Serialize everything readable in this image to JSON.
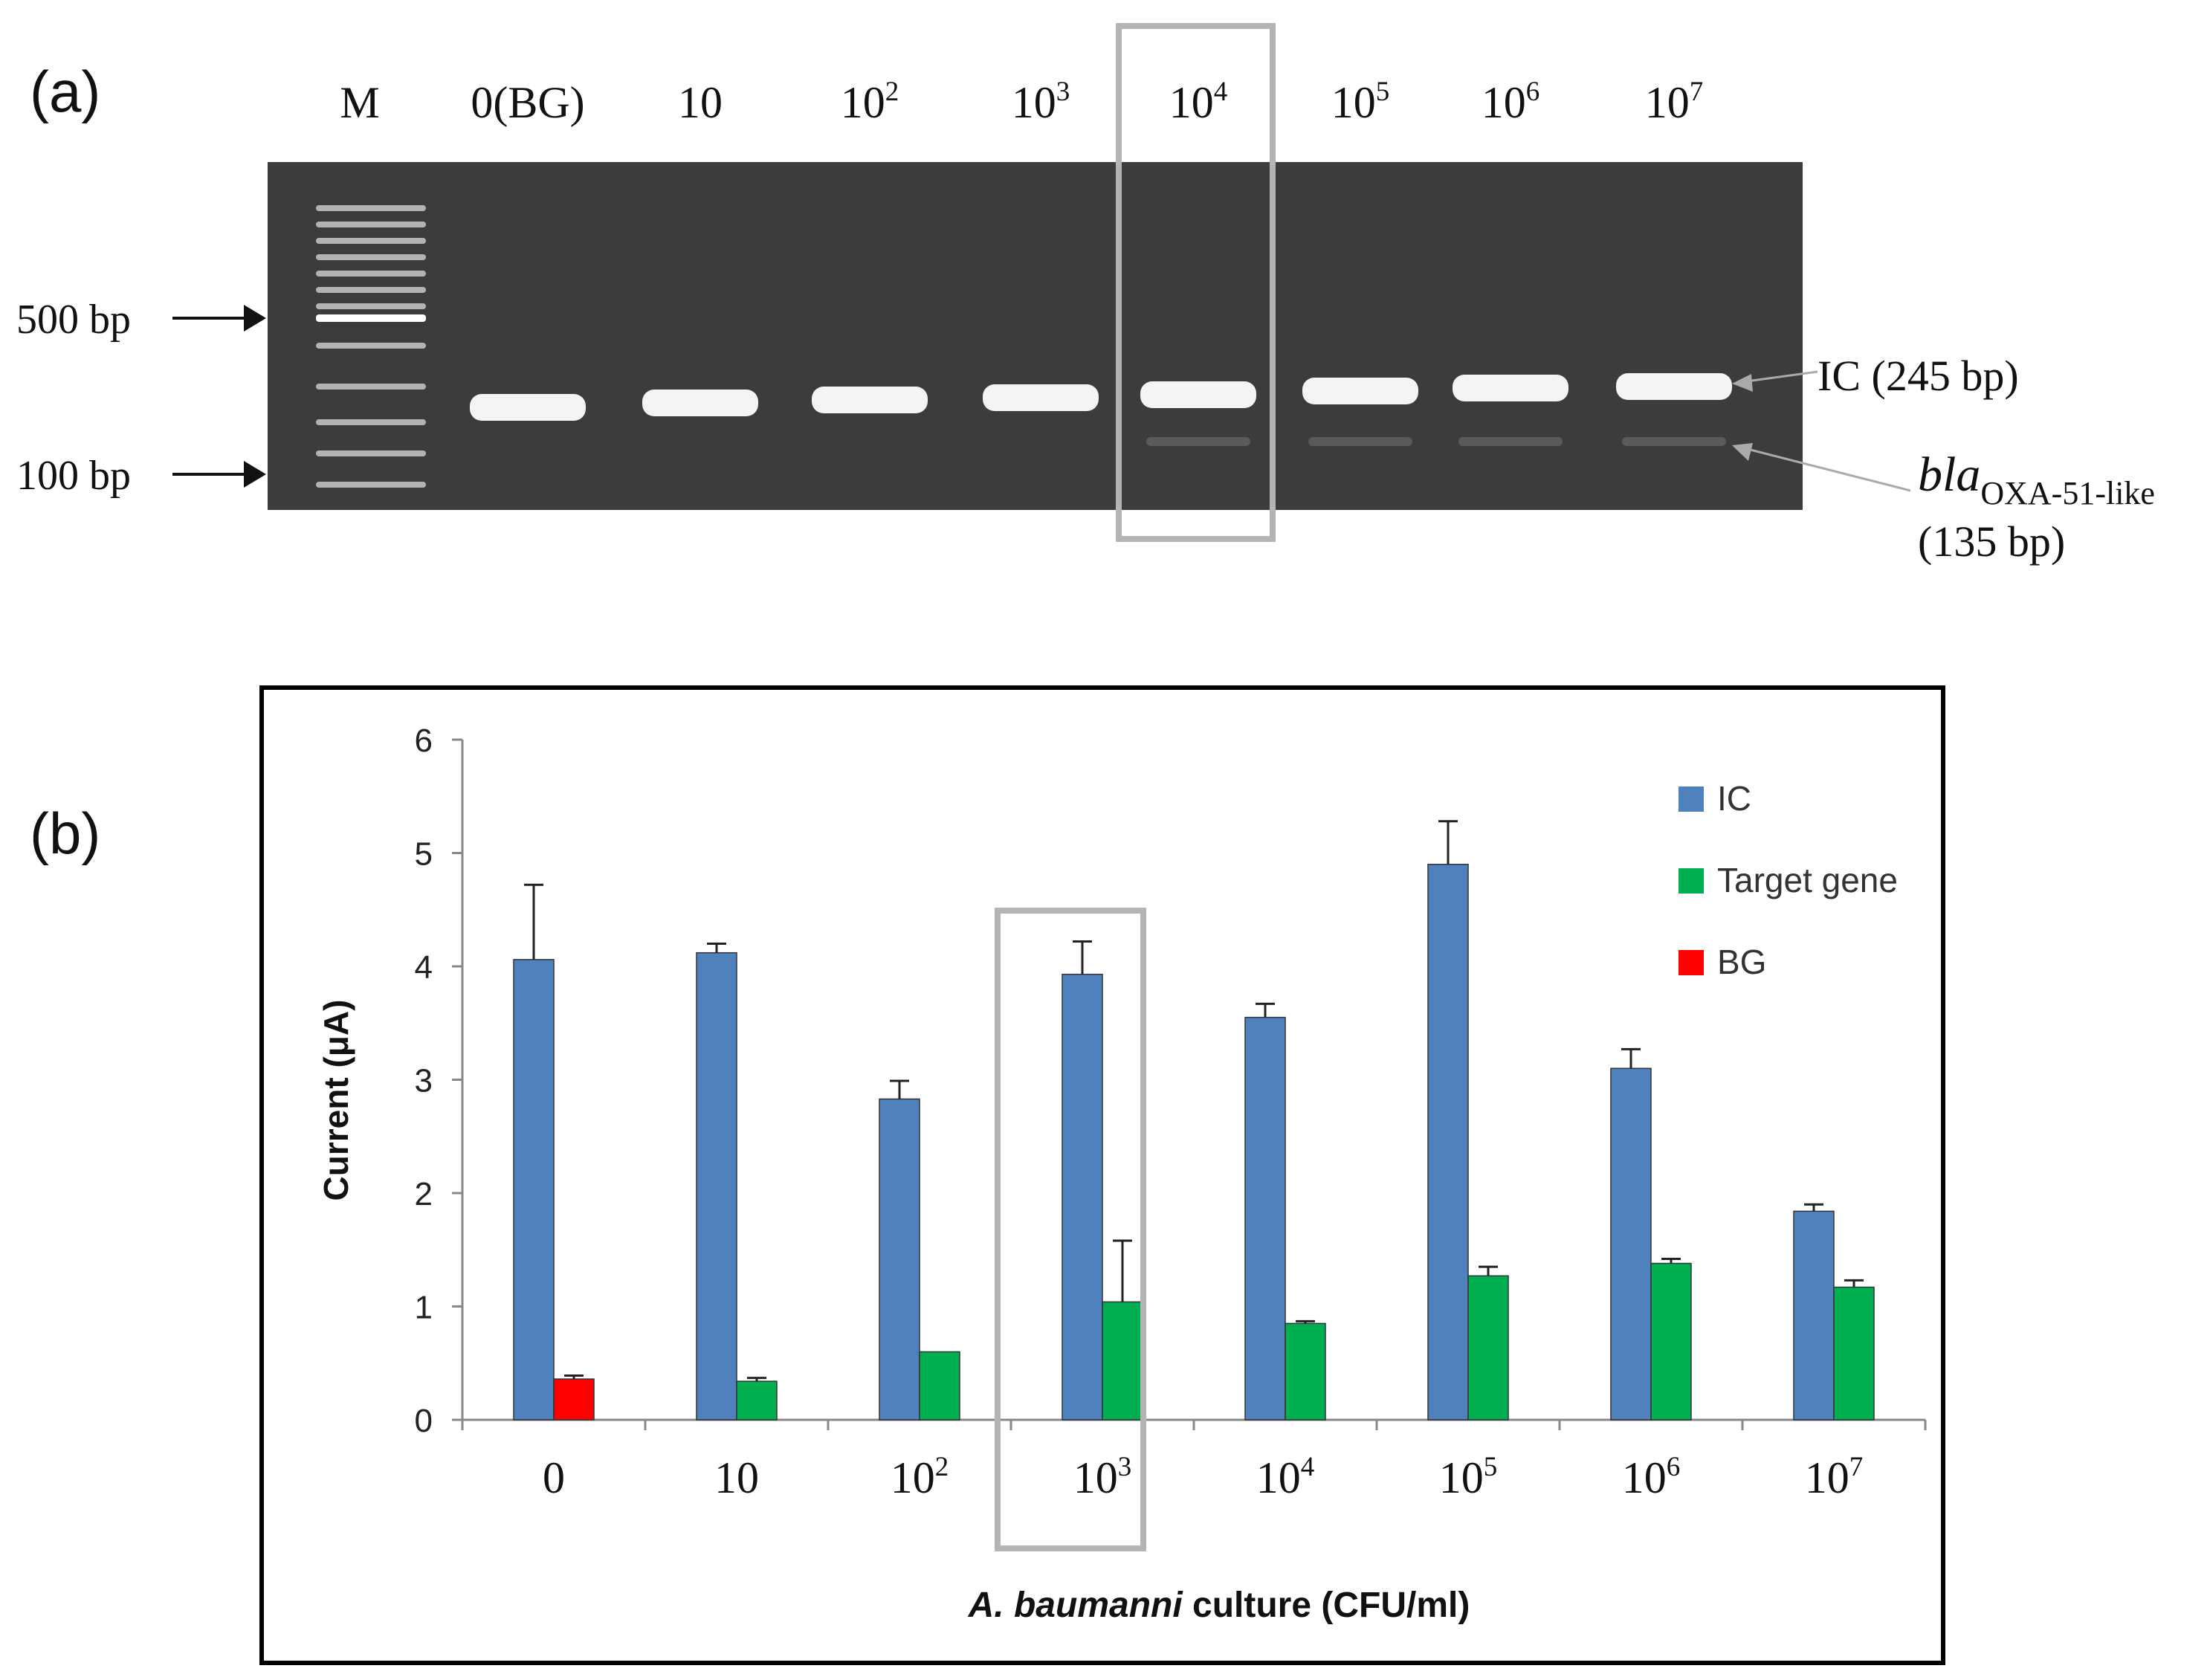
{
  "panel_a": {
    "panel_label": "(a)",
    "lane_labels": [
      {
        "base": "M",
        "sup": ""
      },
      {
        "base": "0(BG)",
        "sup": ""
      },
      {
        "base": "10",
        "sup": ""
      },
      {
        "base": "10",
        "sup": "2"
      },
      {
        "base": "10",
        "sup": "3"
      },
      {
        "base": "10",
        "sup": "4"
      },
      {
        "base": "10",
        "sup": "5"
      },
      {
        "base": "10",
        "sup": "6"
      },
      {
        "base": "10",
        "sup": "7"
      }
    ],
    "size_markers": [
      "500 bp",
      "100 bp"
    ],
    "band_labels": {
      "ic": "IC (245 bp)",
      "target_base": "bla",
      "target_sub": "OXA-51-like",
      "target_size": "(135 bp)"
    },
    "highlighted_lane": "10^4",
    "colors": {
      "gel": "#3c3c3c",
      "band": "#ffffff",
      "highlight_box": "#b4b4b4"
    }
  },
  "panel_b": {
    "panel_label": "(b)",
    "highlighted_category": "10^3",
    "chart_data": {
      "type": "bar",
      "categories": [
        {
          "base": "0",
          "sup": ""
        },
        {
          "base": "10",
          "sup": ""
        },
        {
          "base": "10",
          "sup": "2"
        },
        {
          "base": "10",
          "sup": "3"
        },
        {
          "base": "10",
          "sup": "4"
        },
        {
          "base": "10",
          "sup": "5"
        },
        {
          "base": "10",
          "sup": "6"
        },
        {
          "base": "10",
          "sup": "7"
        }
      ],
      "series": [
        {
          "name": "IC",
          "color": "#4f81bd",
          "values": [
            4.06,
            4.12,
            2.83,
            3.93,
            3.55,
            4.9,
            3.1,
            1.84
          ],
          "errors": [
            0.66,
            0.08,
            0.16,
            0.29,
            0.12,
            0.38,
            0.17,
            0.06
          ]
        },
        {
          "name": "Target gene",
          "color": "#00b050",
          "values": [
            null,
            0.34,
            0.6,
            1.04,
            0.85,
            1.27,
            1.38,
            1.17
          ],
          "errors": [
            null,
            0.03,
            0.0,
            0.54,
            0.02,
            0.08,
            0.04,
            0.06
          ]
        },
        {
          "name": "BG",
          "color": "#ff0000",
          "values": [
            0.36,
            null,
            null,
            null,
            null,
            null,
            null,
            null
          ],
          "errors": [
            0.03,
            null,
            null,
            null,
            null,
            null,
            null,
            null
          ]
        }
      ],
      "ylabel": "Current (μA)",
      "xlabel_italic": "A. baumanni",
      "xlabel_rest": " culture (CFU/ml)",
      "ylim": [
        0,
        6
      ],
      "yticks": [
        0,
        1,
        2,
        3,
        4,
        5,
        6
      ],
      "legend_position": "top-right",
      "grid": false
    }
  }
}
